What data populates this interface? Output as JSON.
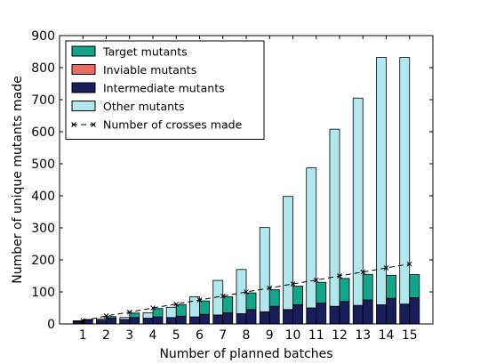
{
  "chart_data": {
    "type": "bar",
    "title": "",
    "xlabel": "Number of planned batches",
    "ylabel": "Number of unique mutants made",
    "ylim": [
      0,
      900
    ],
    "yticks": [
      0,
      100,
      200,
      300,
      400,
      500,
      600,
      700,
      800,
      900
    ],
    "categories": [
      "1",
      "2",
      "3",
      "4",
      "5",
      "6",
      "7",
      "8",
      "9",
      "10",
      "11",
      "12",
      "13",
      "14",
      "15"
    ],
    "legend_position": "top-left",
    "grid": false,
    "groups": [
      {
        "name": "left",
        "stack": [
          {
            "series": "Intermediate mutants",
            "color": "#191d5a",
            "values": [
              8,
              12,
              14,
              18,
              20,
              22,
              28,
              32,
              38,
              45,
              50,
              55,
              58,
              60,
              62
            ]
          },
          {
            "series": "Other mutants",
            "color": "#b0e8ee",
            "values": [
              2,
              4,
              6,
              17,
              32,
              63,
              108,
              138,
              263,
              353,
              437,
              553,
              647,
              772,
              770
            ]
          }
        ]
      },
      {
        "name": "right",
        "stack": [
          {
            "series": "Intermediate mutants",
            "color": "#191d5a",
            "values": [
              12,
              18,
              20,
              22,
              24,
              30,
              35,
              45,
              55,
              60,
              65,
              70,
              75,
              80,
              82
            ]
          },
          {
            "series": "Target mutants",
            "color": "#13a58a",
            "values": [
              2,
              5,
              14,
              26,
              36,
              42,
              50,
              52,
              52,
              58,
              65,
              72,
              80,
              72,
              72
            ]
          }
        ]
      }
    ],
    "line_series": {
      "name": "Number of crosses made",
      "color": "#000000",
      "x": [
        1,
        2,
        3,
        4,
        5,
        6,
        7,
        8,
        9,
        10,
        11,
        12,
        13,
        14,
        15
      ],
      "values": [
        10,
        25,
        37,
        50,
        62,
        75,
        87,
        100,
        112,
        125,
        137,
        150,
        162,
        175,
        187
      ]
    },
    "legend": [
      {
        "label": "Target mutants",
        "color": "#13a58a",
        "kind": "patch"
      },
      {
        "label": "Inviable mutants",
        "color": "#f06a5f",
        "kind": "patch"
      },
      {
        "label": "Intermediate mutants",
        "color": "#191d5a",
        "kind": "patch"
      },
      {
        "label": "Other mutants",
        "color": "#b0e8ee",
        "kind": "patch"
      },
      {
        "label": "Number of crosses made",
        "color": "#000000",
        "kind": "line"
      }
    ]
  }
}
